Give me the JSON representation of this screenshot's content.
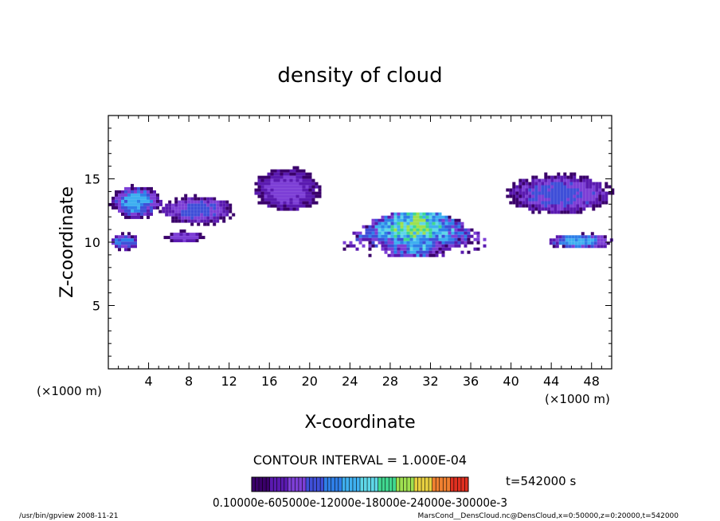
{
  "chart_data": {
    "type": "heatmap",
    "title": "density of cloud",
    "xlabel": "X-coordinate",
    "ylabel": "Z-coordinate",
    "x_unit": "(×1000 m)",
    "y_unit": "(×1000 m)",
    "xlim": [
      0,
      50
    ],
    "ylim": [
      0,
      20
    ],
    "x_ticks": [
      "4",
      "8",
      "12",
      "16",
      "20",
      "24",
      "28",
      "32",
      "36",
      "40",
      "44",
      "48"
    ],
    "y_ticks": [
      "5",
      "10",
      "15"
    ],
    "contour_interval_label": "CONTOUR INTERVAL = 1.000E-04",
    "time_label": "t=542000 s",
    "colorbar_labels": "0.10000e-605000e-12000e-18000e-24000e-30000e-3",
    "footer_left": "/usr/bin/gpview   2008-11-21",
    "footer_right": "MarsCond__DensCloud.nc@DensCloud,x=0:50000,z=0:20000,t=542000",
    "palette": [
      "#3a006a",
      "#5a1ab0",
      "#7d3fd6",
      "#3f4fd8",
      "#2f7fe8",
      "#3fb0f0",
      "#5fd8e8",
      "#40d890",
      "#9fe050",
      "#e8d040",
      "#f08030",
      "#e03020"
    ],
    "cloud_blobs": [
      {
        "label": "left-upper-band",
        "x": [
          0,
          5.2
        ],
        "z": [
          12.0,
          14.6
        ],
        "peak": 5
      },
      {
        "label": "left-mid",
        "x": [
          5,
          12.5
        ],
        "z": [
          11.5,
          13.8
        ],
        "peak": 3
      },
      {
        "label": "left-lower",
        "x": [
          0,
          3
        ],
        "z": [
          9.5,
          10.8
        ],
        "peak": 4
      },
      {
        "label": "left-lower-2",
        "x": [
          5.5,
          9.5
        ],
        "z": [
          10.0,
          11.0
        ],
        "peak": 2
      },
      {
        "label": "upper-center",
        "x": [
          14.2,
          21
        ],
        "z": [
          12.5,
          16.0
        ],
        "peak": 2
      },
      {
        "label": "center-arch",
        "x": [
          23.3,
          37.5
        ],
        "z": [
          9.0,
          12.6
        ],
        "peak": 8
      },
      {
        "label": "right-upper",
        "x": [
          39.5,
          50
        ],
        "z": [
          12.3,
          15.5
        ],
        "peak": 3
      },
      {
        "label": "right-lower",
        "x": [
          43.5,
          50
        ],
        "z": [
          9.6,
          10.8
        ],
        "peak": 5
      }
    ]
  }
}
